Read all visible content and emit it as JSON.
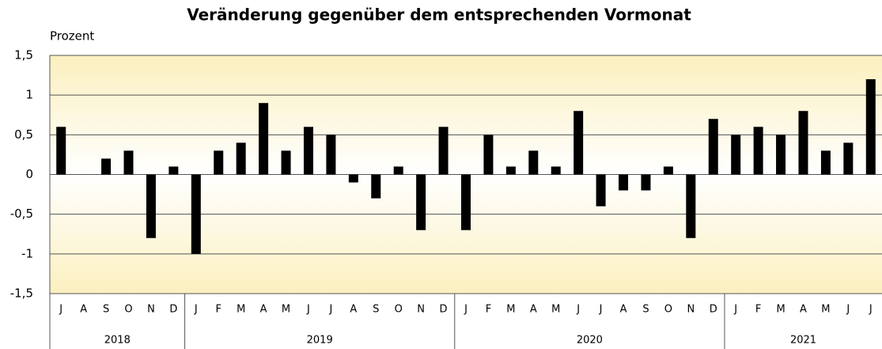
{
  "chart_data": {
    "type": "bar",
    "title": "Veränderung gegenüber dem entsprechenden Vormonat",
    "y_axis_label": "Prozent",
    "category_groups": [
      {
        "name": "2018",
        "categories": [
          "J",
          "A",
          "S",
          "O",
          "N",
          "D"
        ]
      },
      {
        "name": "2019",
        "categories": [
          "J",
          "F",
          "M",
          "A",
          "M",
          "J",
          "J",
          "A",
          "S",
          "O",
          "N",
          "D"
        ]
      },
      {
        "name": "2020",
        "categories": [
          "J",
          "F",
          "M",
          "A",
          "M",
          "J",
          "J",
          "A",
          "S",
          "O",
          "N",
          "D"
        ]
      },
      {
        "name": "2021",
        "categories": [
          "J",
          "F",
          "M",
          "A",
          "M",
          "J",
          "J"
        ]
      }
    ],
    "values": [
      0.6,
      0,
      0.2,
      0.3,
      -0.8,
      0.1,
      -1.0,
      0.3,
      0.4,
      0.9,
      0.3,
      0.6,
      0.5,
      -0.1,
      -0.3,
      0.1,
      -0.7,
      0.6,
      -0.7,
      0.5,
      0.1,
      0.3,
      0.1,
      0.8,
      -0.4,
      -0.2,
      -0.2,
      0.1,
      -0.8,
      0.7,
      0.5,
      0.6,
      0.5,
      0.8,
      0.3,
      0.4,
      1.2
    ],
    "color": "#000000",
    "ylim": [
      -1.5,
      1.5
    ],
    "yticks": [
      {
        "value": -1.5,
        "label": "-1,5"
      },
      -1,
      {
        "value": -0.5,
        "label": "-0,5"
      },
      0,
      {
        "value": 0.5,
        "label": "0,5"
      },
      1,
      {
        "value": 1.5,
        "label": "1,5"
      }
    ],
    "grid": true
  }
}
